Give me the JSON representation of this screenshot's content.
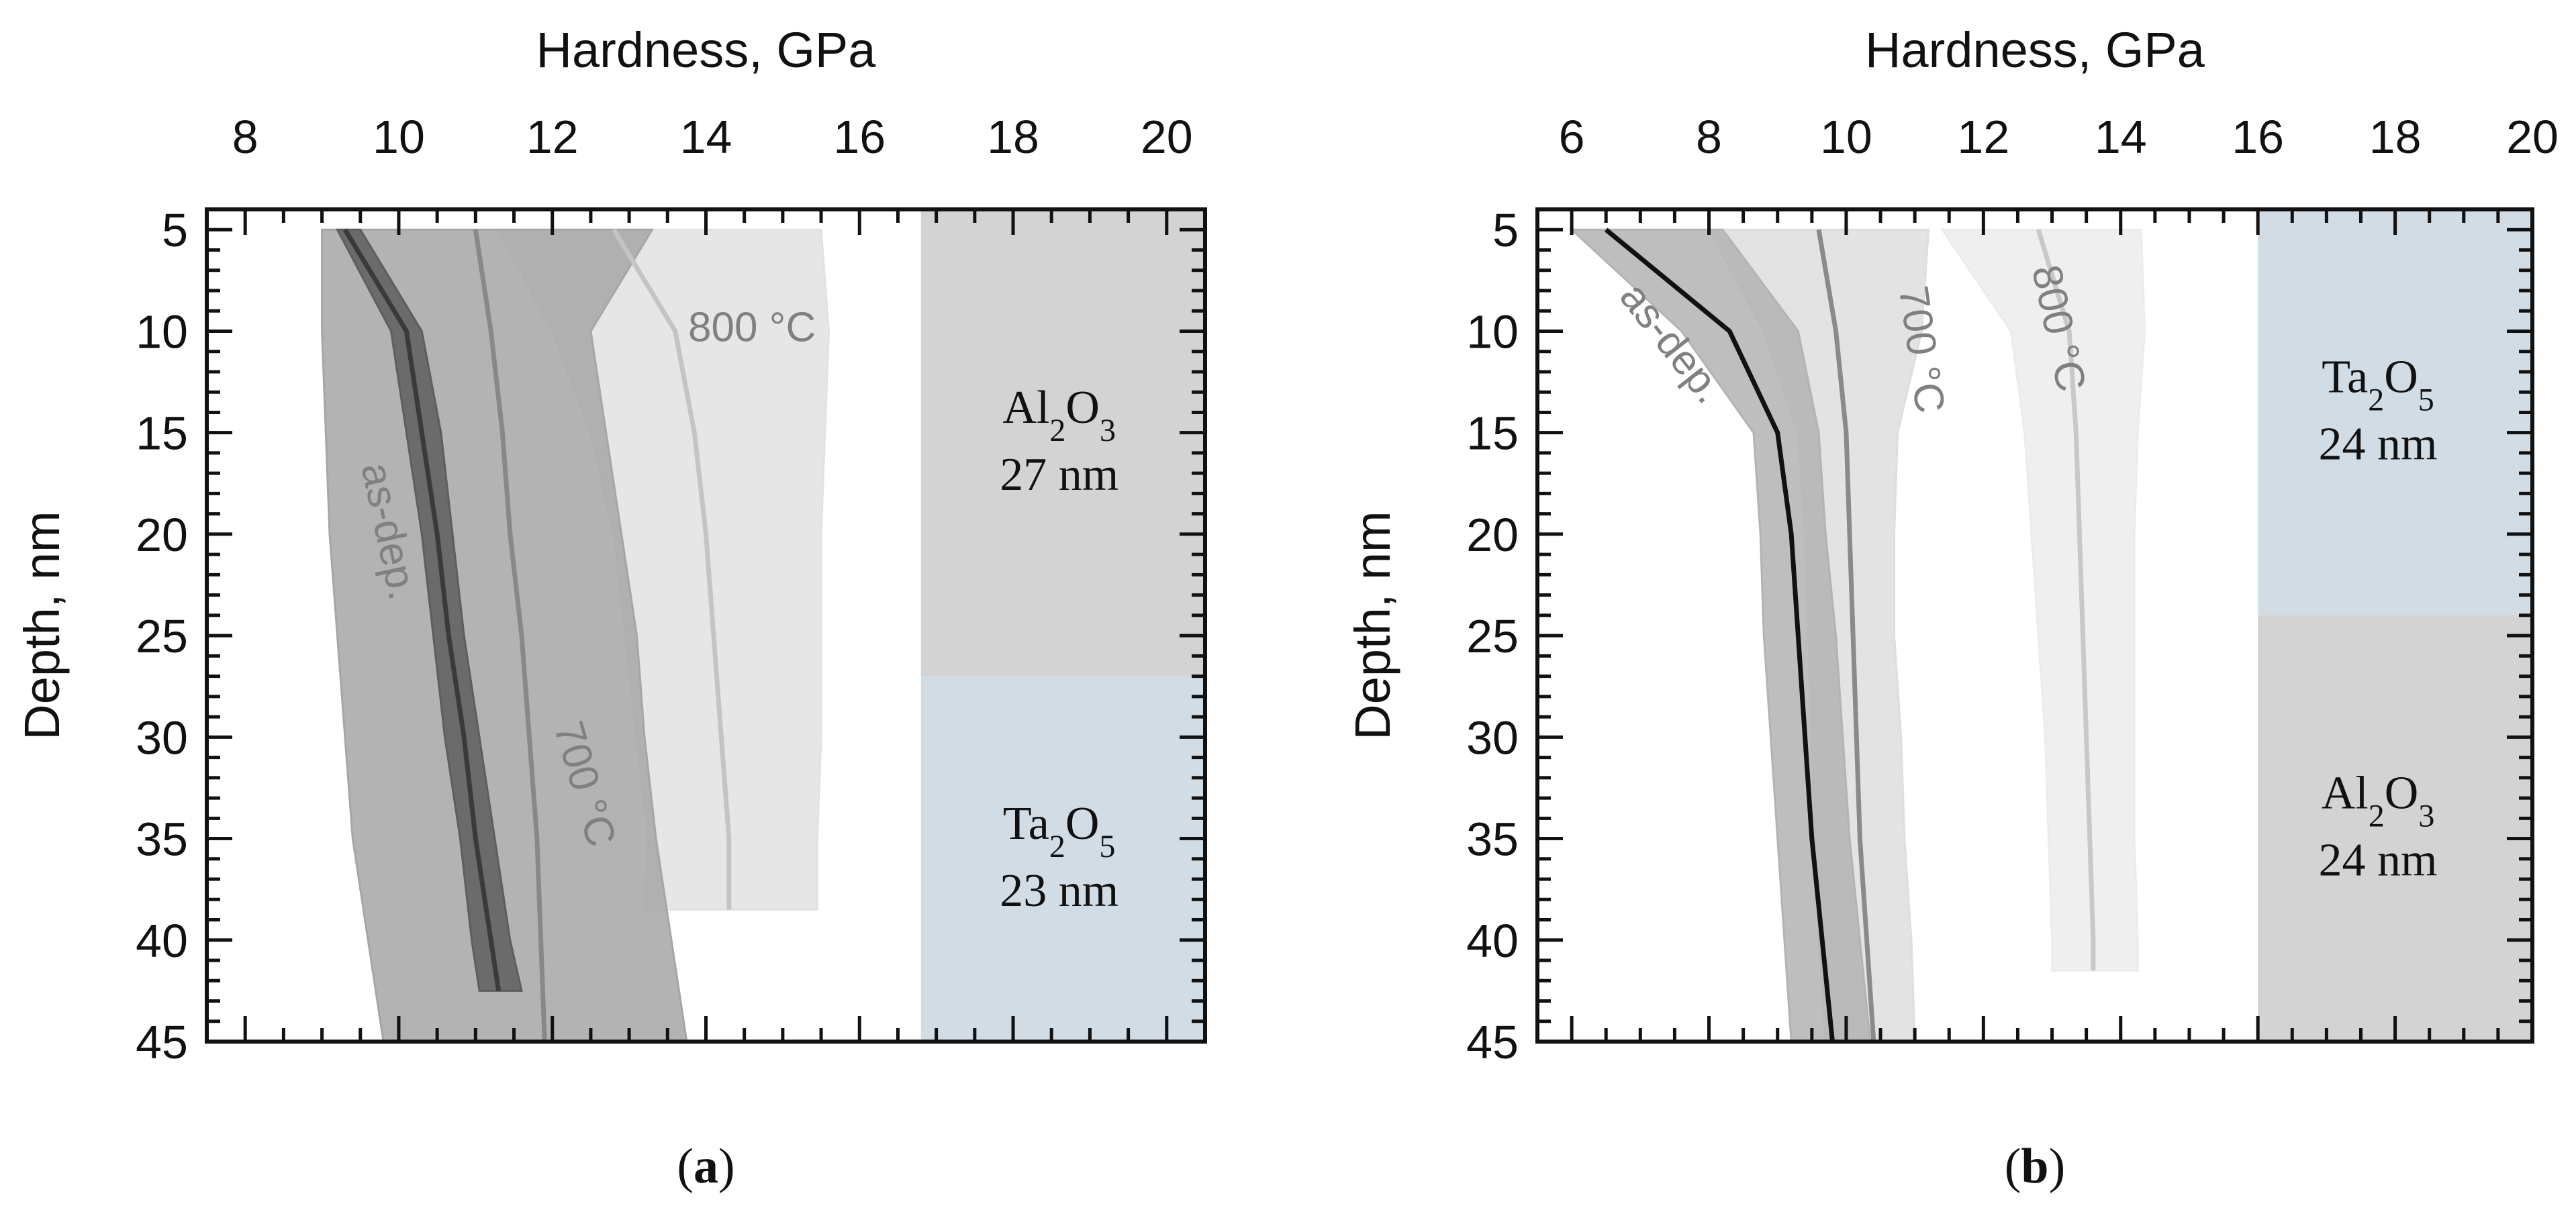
{
  "chart_data": [
    {
      "type": "line",
      "panel_label": "a",
      "xlabel": "Hardness, GPa",
      "ylabel": "Depth, nm",
      "x_axis_position": "top",
      "y_axis_inverted": true,
      "xlim": [
        7.5,
        20.5
      ],
      "ylim": [
        4,
        45
      ],
      "xticks": [
        8,
        10,
        12,
        14,
        16,
        18,
        20
      ],
      "yticks": [
        5,
        10,
        15,
        20,
        25,
        30,
        35,
        40,
        45
      ],
      "grid": false,
      "layers": [
        {
          "name": "Al2O3",
          "thickness": "27 nm",
          "from_depth": 4,
          "to_depth": 27,
          "color": "#d3d3d3"
        },
        {
          "name": "Ta2O5",
          "thickness": "23 nm",
          "from_depth": 27,
          "to_depth": 45,
          "color": "#d1dce5"
        }
      ],
      "layer_region_x_start": 16.8,
      "series": [
        {
          "name": "as-dep.",
          "color": "#3a3a3a",
          "band_color": "#5e5e5e",
          "depth": [
            5,
            10,
            15,
            20,
            25,
            30,
            35,
            40,
            42.5
          ],
          "hardness": [
            9.3,
            10.1,
            10.3,
            10.5,
            10.65,
            10.85,
            11.0,
            11.2,
            11.3
          ],
          "band_lower": [
            9.2,
            9.9,
            10.1,
            10.3,
            10.45,
            10.6,
            10.8,
            10.95,
            11.05
          ],
          "band_upper": [
            9.5,
            10.3,
            10.55,
            10.7,
            10.85,
            11.05,
            11.25,
            11.45,
            11.6
          ]
        },
        {
          "name": "700 °C",
          "color": "#888888",
          "band_color": "#a6a6a6",
          "depth": [
            5,
            10,
            15,
            20,
            25,
            30,
            35,
            40,
            45
          ],
          "hardness": [
            11.0,
            11.2,
            11.35,
            11.45,
            11.6,
            11.7,
            11.8,
            11.85,
            11.9
          ],
          "band_lower": [
            9.0,
            9.0,
            9.05,
            9.1,
            9.2,
            9.3,
            9.4,
            9.6,
            9.8
          ],
          "band_upper": [
            13.3,
            12.5,
            12.7,
            12.9,
            13.1,
            13.2,
            13.35,
            13.55,
            13.75
          ]
        },
        {
          "name": "800 °C",
          "color": "#c4c4c4",
          "band_color": "#e2e2e2",
          "depth": [
            5,
            10,
            15,
            20,
            25,
            30,
            35,
            38.5
          ],
          "hardness": [
            12.8,
            13.6,
            13.85,
            14.0,
            14.1,
            14.2,
            14.3,
            14.3
          ],
          "band_lower": [
            11.3,
            12.0,
            12.5,
            12.8,
            12.95,
            13.1,
            13.25,
            13.2
          ],
          "band_upper": [
            15.5,
            15.6,
            15.55,
            15.5,
            15.5,
            15.5,
            15.45,
            15.45
          ]
        }
      ],
      "annotations": [
        "as-dep.",
        "700 °C",
        "800 °C"
      ],
      "caption": "(a)"
    },
    {
      "type": "line",
      "panel_label": "b",
      "xlabel": "Hardness, GPa",
      "ylabel": "Depth, nm",
      "x_axis_position": "top",
      "y_axis_inverted": true,
      "xlim": [
        5.5,
        20
      ],
      "ylim": [
        4,
        45
      ],
      "xticks": [
        6,
        8,
        10,
        12,
        14,
        16,
        18,
        20
      ],
      "yticks": [
        5,
        10,
        15,
        20,
        25,
        30,
        35,
        40,
        45
      ],
      "grid": false,
      "layers": [
        {
          "name": "Ta2O5",
          "thickness": "24 nm",
          "from_depth": 4,
          "to_depth": 24,
          "color": "#d1dce5"
        },
        {
          "name": "Al2O3",
          "thickness": "24 nm",
          "from_depth": 24,
          "to_depth": 45,
          "color": "#d3d3d3"
        }
      ],
      "layer_region_x_start": 16.0,
      "series": [
        {
          "name": "as-dep.",
          "color": "#111111",
          "band_color": "#b3b3b3",
          "depth": [
            5,
            10,
            15,
            20,
            25,
            30,
            35,
            40,
            45
          ],
          "hardness": [
            6.5,
            8.3,
            9.0,
            9.2,
            9.3,
            9.4,
            9.5,
            9.65,
            9.8
          ],
          "band_lower": [
            6.0,
            7.6,
            8.65,
            8.75,
            8.8,
            8.9,
            9.0,
            9.1,
            9.2
          ],
          "band_upper": [
            8.2,
            9.3,
            9.6,
            9.7,
            9.85,
            9.95,
            10.05,
            10.2,
            10.35
          ]
        },
        {
          "name": "700 °C",
          "color": "#8a8a8a",
          "band_color": "#dedede",
          "depth": [
            5,
            10,
            15,
            20,
            25,
            30,
            35,
            40,
            45
          ],
          "hardness": [
            9.6,
            9.85,
            10.0,
            10.05,
            10.1,
            10.15,
            10.2,
            10.3,
            10.4
          ],
          "band_lower": [
            8.0,
            8.8,
            9.3,
            9.4,
            9.45,
            9.5,
            9.55,
            9.6,
            9.7
          ],
          "band_upper": [
            11.2,
            11.1,
            10.75,
            10.7,
            10.7,
            10.8,
            10.85,
            10.95,
            11.0
          ]
        },
        {
          "name": "800 °C",
          "color": "#c8c8c8",
          "band_color": "#ececec",
          "depth": [
            5,
            10,
            15,
            20,
            25,
            30,
            35,
            40,
            41.5
          ],
          "hardness": [
            12.8,
            13.25,
            13.35,
            13.4,
            13.45,
            13.5,
            13.55,
            13.6,
            13.6
          ],
          "band_lower": [
            11.4,
            12.4,
            12.6,
            12.7,
            12.8,
            12.9,
            12.95,
            13.0,
            13.0
          ],
          "band_upper": [
            14.3,
            14.35,
            14.25,
            14.2,
            14.2,
            14.2,
            14.2,
            14.25,
            14.25
          ]
        }
      ],
      "annotations": [
        "as-dep.",
        "700 °C",
        "800 °C"
      ],
      "caption": "(b)"
    }
  ]
}
